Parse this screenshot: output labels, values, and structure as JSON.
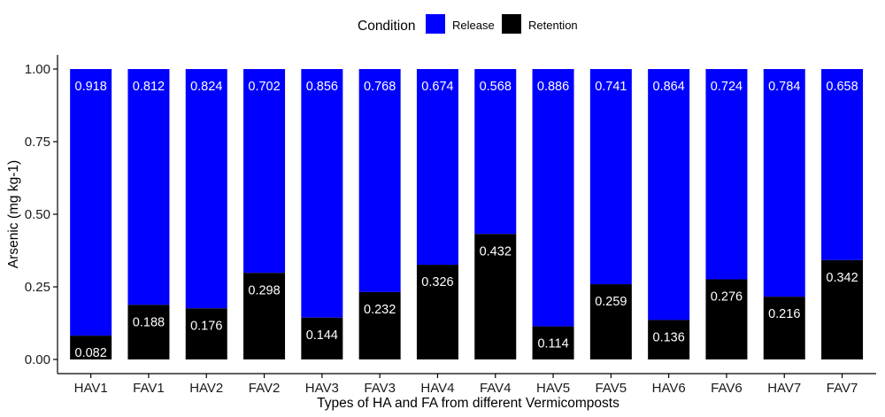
{
  "chart_data": {
    "type": "bar",
    "stacked": true,
    "categories": [
      "HAV1",
      "FAV1",
      "HAV2",
      "FAV2",
      "HAV3",
      "FAV3",
      "HAV4",
      "FAV4",
      "HAV5",
      "FAV5",
      "HAV6",
      "FAV6",
      "HAV7",
      "FAV7"
    ],
    "series": [
      {
        "name": "Retention",
        "color": "#000000",
        "values": [
          0.082,
          0.188,
          0.176,
          0.298,
          0.144,
          0.232,
          0.326,
          0.432,
          0.114,
          0.259,
          0.136,
          0.276,
          0.216,
          0.342
        ],
        "labels": [
          "0.082",
          "0.188",
          "0.176",
          "0.298",
          "0.144",
          "0.232",
          "0.326",
          "0.432",
          "0.114",
          "0.259",
          "0.136",
          "0.276",
          "0.216",
          "0.342"
        ]
      },
      {
        "name": "Release",
        "color": "#0000ff",
        "values": [
          0.918,
          0.812,
          0.824,
          0.702,
          0.856,
          0.768,
          0.674,
          0.568,
          0.886,
          0.741,
          0.864,
          0.724,
          0.784,
          0.658
        ],
        "labels": [
          "0.918",
          "0.812",
          "0.824",
          "0.702",
          "0.856",
          "0.768",
          "0.674",
          "0.568",
          "0.886",
          "0.741",
          "0.864",
          "0.724",
          "0.784",
          "0.658"
        ]
      }
    ],
    "xlabel": "Types of HA and FA from different Vermicomposts",
    "ylabel": "Arsenic (mg kg-1)",
    "ylim": [
      0,
      1.05
    ],
    "yticks": [
      0.0,
      0.25,
      0.5,
      0.75,
      1.0
    ],
    "ytick_labels": [
      "0.00",
      "0.25",
      "0.50",
      "0.75",
      "1.00"
    ],
    "grid": false,
    "legend": {
      "title": "Condition",
      "placement": "top",
      "entries": [
        {
          "name": "Release",
          "color": "#0000ff"
        },
        {
          "name": "Retention",
          "color": "#000000"
        }
      ]
    }
  }
}
